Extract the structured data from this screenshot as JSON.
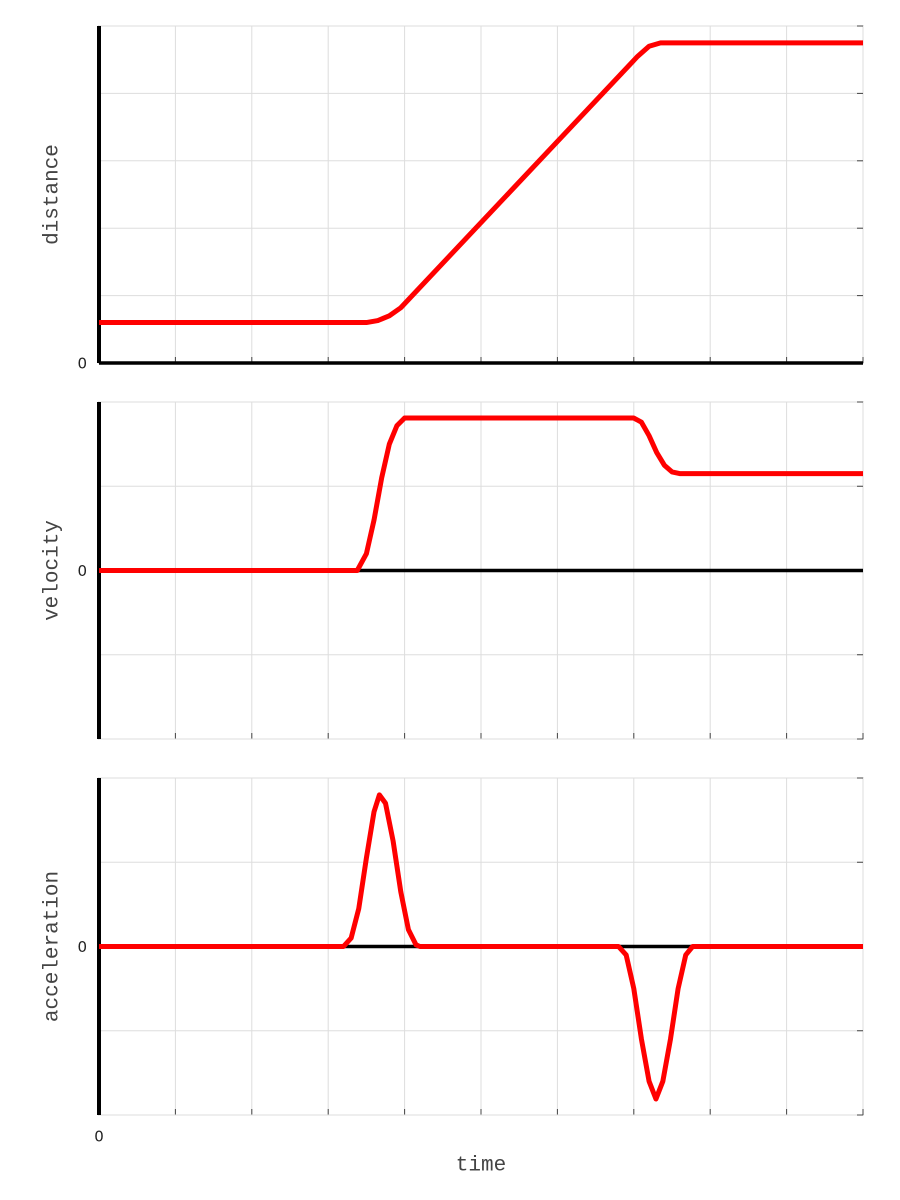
{
  "chart_data": [
    {
      "type": "line",
      "ylabel": "distance",
      "color": "#ff0000",
      "grid": true,
      "xlim": [
        0,
        10
      ],
      "ylim": [
        0,
        5
      ],
      "xticks": [
        {
          "value": 0,
          "label": null
        },
        {
          "value": 1,
          "label": null
        },
        {
          "value": 2,
          "label": null
        },
        {
          "value": 3,
          "label": null
        },
        {
          "value": 4,
          "label": null
        },
        {
          "value": 5,
          "label": null
        },
        {
          "value": 6,
          "label": null
        },
        {
          "value": 7,
          "label": null
        },
        {
          "value": 8,
          "label": null
        },
        {
          "value": 9,
          "label": null
        },
        {
          "value": 10,
          "label": null
        }
      ],
      "yticks": [
        0,
        {
          "value": 1,
          "label": null
        },
        {
          "value": 2,
          "label": null
        },
        {
          "value": 3,
          "label": null
        },
        {
          "value": 4,
          "label": null
        },
        {
          "value": 5,
          "label": null
        }
      ],
      "x": [
        0,
        3.5,
        3.65,
        3.8,
        3.95,
        7.05,
        7.2,
        7.35,
        10
      ],
      "values": [
        0.6,
        0.6,
        0.63,
        0.7,
        0.82,
        4.55,
        4.7,
        4.75,
        4.75
      ]
    },
    {
      "type": "line",
      "ylabel": "velocity",
      "color": "#ff0000",
      "grid": true,
      "xlim": [
        0,
        10
      ],
      "ylim": [
        -2,
        2
      ],
      "xticks": [
        {
          "value": 0,
          "label": null
        },
        {
          "value": 1,
          "label": null
        },
        {
          "value": 2,
          "label": null
        },
        {
          "value": 3,
          "label": null
        },
        {
          "value": 4,
          "label": null
        },
        {
          "value": 5,
          "label": null
        },
        {
          "value": 6,
          "label": null
        },
        {
          "value": 7,
          "label": null
        },
        {
          "value": 8,
          "label": null
        },
        {
          "value": 9,
          "label": null
        },
        {
          "value": 10,
          "label": null
        }
      ],
      "yticks": [
        {
          "value": -2,
          "label": null
        },
        {
          "value": -1,
          "label": null
        },
        0,
        {
          "value": 1,
          "label": null
        },
        {
          "value": 2,
          "label": null
        }
      ],
      "x": [
        0,
        3.38,
        3.5,
        3.6,
        3.7,
        3.8,
        3.9,
        4.0,
        7.0,
        7.1,
        7.2,
        7.3,
        7.4,
        7.5,
        7.6,
        10
      ],
      "values": [
        0,
        0,
        0.2,
        0.6,
        1.1,
        1.5,
        1.72,
        1.81,
        1.81,
        1.76,
        1.6,
        1.4,
        1.25,
        1.17,
        1.15,
        1.15
      ]
    },
    {
      "type": "line",
      "ylabel": "acceleration",
      "xlabel": "time",
      "color": "#ff0000",
      "grid": true,
      "xlim": [
        0,
        10
      ],
      "ylim": [
        -2,
        2
      ],
      "xticks": [
        0,
        {
          "value": 1,
          "label": null
        },
        {
          "value": 2,
          "label": null
        },
        {
          "value": 3,
          "label": null
        },
        {
          "value": 4,
          "label": null
        },
        {
          "value": 5,
          "label": null
        },
        {
          "value": 6,
          "label": null
        },
        {
          "value": 7,
          "label": null
        },
        {
          "value": 8,
          "label": null
        },
        {
          "value": 9,
          "label": null
        },
        {
          "value": 10,
          "label": null
        }
      ],
      "yticks": [
        {
          "value": -2,
          "label": null
        },
        {
          "value": -1,
          "label": null
        },
        0,
        {
          "value": 1,
          "label": null
        },
        {
          "value": 2,
          "label": null
        }
      ],
      "x": [
        0,
        3.2,
        3.3,
        3.4,
        3.5,
        3.6,
        3.67,
        3.75,
        3.85,
        3.95,
        4.05,
        4.15,
        4.2,
        6.8,
        6.9,
        7.0,
        7.1,
        7.2,
        7.29,
        7.38,
        7.48,
        7.58,
        7.68,
        7.77,
        10
      ],
      "values": [
        0,
        0,
        0.1,
        0.45,
        1.05,
        1.6,
        1.8,
        1.7,
        1.25,
        0.65,
        0.2,
        0.02,
        0,
        0,
        -0.1,
        -0.5,
        -1.1,
        -1.6,
        -1.81,
        -1.6,
        -1.1,
        -0.5,
        -0.1,
        0,
        0
      ]
    }
  ]
}
